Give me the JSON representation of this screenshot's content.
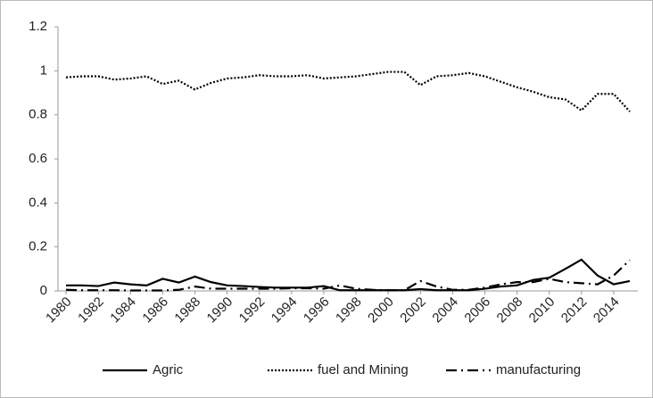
{
  "chart_data": {
    "type": "line",
    "x": [
      1980,
      1981,
      1982,
      1983,
      1984,
      1985,
      1986,
      1987,
      1988,
      1989,
      1990,
      1991,
      1992,
      1993,
      1994,
      1995,
      1996,
      1997,
      1998,
      1999,
      2000,
      2001,
      2002,
      2003,
      2004,
      2005,
      2006,
      2007,
      2008,
      2009,
      2010,
      2011,
      2012,
      2013,
      2014,
      2015
    ],
    "xlim": [
      1979.5,
      2015.5
    ],
    "xticks": [
      1980,
      1982,
      1984,
      1986,
      1988,
      1990,
      1992,
      1994,
      1996,
      1998,
      2000,
      2002,
      2004,
      2006,
      2008,
      2010,
      2012,
      2014
    ],
    "ylim": [
      0,
      1.2
    ],
    "yticks": [
      0,
      0.2,
      0.4,
      0.6,
      0.8,
      1,
      1.2
    ],
    "grid": false,
    "legend": "bottom",
    "series": [
      {
        "name": "Agric",
        "color": "#000000",
        "dash": "solid",
        "values": [
          0.025,
          0.025,
          0.022,
          0.038,
          0.03,
          0.025,
          0.055,
          0.038,
          0.065,
          0.04,
          0.025,
          0.022,
          0.018,
          0.015,
          0.015,
          0.015,
          0.022,
          0.003,
          0.003,
          0.003,
          0.003,
          0.003,
          0.008,
          0.003,
          0.003,
          0.003,
          0.01,
          0.02,
          0.025,
          0.05,
          0.06,
          0.1,
          0.142,
          0.07,
          0.03,
          0.045
        ]
      },
      {
        "name": "fuel and Mining",
        "color": "#000000",
        "dash": "dotted",
        "values": [
          0.97,
          0.975,
          0.975,
          0.96,
          0.965,
          0.975,
          0.94,
          0.955,
          0.915,
          0.945,
          0.965,
          0.97,
          0.98,
          0.975,
          0.975,
          0.98,
          0.965,
          0.97,
          0.975,
          0.985,
          0.995,
          0.995,
          0.935,
          0.975,
          0.98,
          0.99,
          0.975,
          0.95,
          0.925,
          0.905,
          0.88,
          0.87,
          0.82,
          0.895,
          0.895,
          0.815
        ]
      },
      {
        "name": "manufacturing",
        "color": "#000000",
        "dash": "dashdot",
        "values": [
          0.005,
          0.003,
          0.003,
          0.003,
          0.002,
          0.002,
          0.002,
          0.005,
          0.02,
          0.01,
          0.01,
          0.01,
          0.01,
          0.01,
          0.012,
          0.012,
          0.01,
          0.025,
          0.01,
          0.005,
          0.003,
          0.003,
          0.045,
          0.02,
          0.005,
          0.005,
          0.015,
          0.03,
          0.04,
          0.04,
          0.055,
          0.04,
          0.035,
          0.03,
          0.07,
          0.14
        ]
      }
    ]
  }
}
